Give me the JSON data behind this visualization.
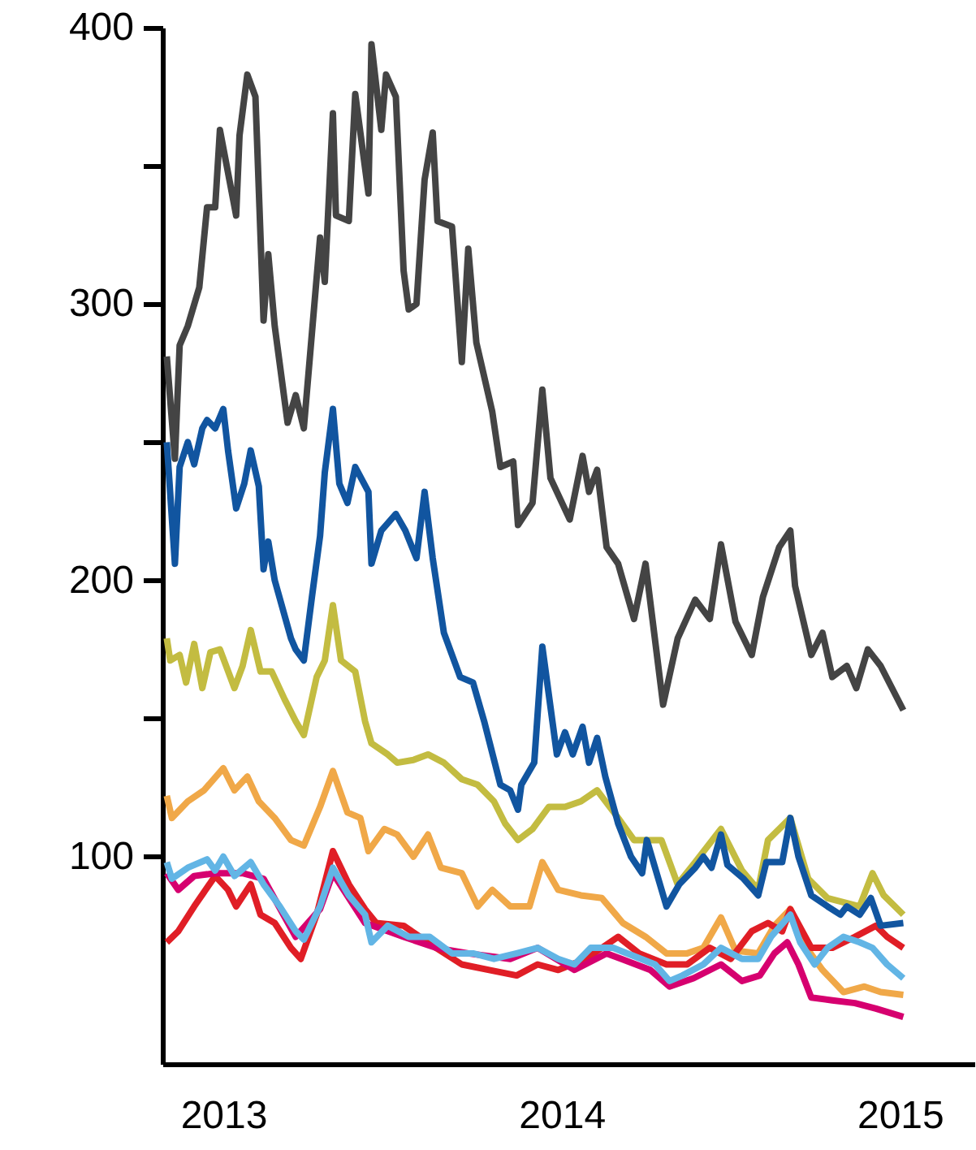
{
  "chart_data": {
    "type": "line",
    "xlim": [
      2012.82,
      2015.22
    ],
    "xticks": [
      2013,
      2014,
      2015
    ],
    "ylim": [
      25,
      400
    ],
    "yticks": [
      100,
      {
        "value": 150,
        "label": null
      },
      200,
      {
        "value": 250,
        "label": null
      },
      300,
      {
        "value": 350,
        "label": null
      },
      400
    ],
    "line_style": "solid",
    "series": [
      {
        "color": "#444444",
        "x": [
          2012.833,
          2012.857,
          2012.871,
          2012.895,
          2012.929,
          2012.952,
          2012.976,
          2012.99,
          2013.038,
          2013.048,
          2013.071,
          2013.095,
          2013.119,
          2013.133,
          2013.152,
          2013.19,
          2013.214,
          2013.238,
          2013.286,
          2013.3,
          2013.324,
          2013.333,
          2013.371,
          2013.39,
          2013.429,
          2013.438,
          2013.467,
          2013.481,
          2013.51,
          2013.533,
          2013.548,
          2013.571,
          2013.595,
          2013.619,
          2013.633,
          2013.676,
          2013.705,
          2013.724,
          2013.748,
          2013.795,
          2013.819,
          2013.857,
          2013.871,
          2013.914,
          2013.943,
          2013.967,
          2014.024,
          2014.062,
          2014.081,
          2014.105,
          2014.133,
          2014.167,
          2014.214,
          2014.248,
          2014.3,
          2014.343,
          2014.395,
          2014.438,
          2014.471,
          2014.514,
          2014.562,
          2014.595,
          2014.643,
          2014.676,
          2014.69,
          2014.738,
          2014.771,
          2014.8,
          2014.843,
          2014.871,
          2014.905,
          2014.943,
          2015.01
        ],
        "values": [
          281,
          244,
          285,
          292,
          306,
          335,
          335,
          363,
          332,
          361,
          383,
          375,
          294,
          318,
          292,
          257,
          267,
          255,
          324,
          308,
          369,
          332,
          330,
          376,
          340,
          394,
          363,
          383,
          375,
          312,
          298,
          300,
          345,
          362,
          330,
          328,
          279,
          320,
          286,
          261,
          241,
          243,
          220,
          228,
          269,
          237,
          222,
          245,
          232,
          240,
          212,
          206,
          186,
          206,
          155,
          179,
          193,
          186,
          213,
          185,
          173,
          194,
          212,
          218,
          198,
          173,
          181,
          165,
          169,
          161,
          175,
          169,
          153
        ]
      },
      {
        "color": "#c3bc41",
        "x": [
          2012.833,
          2012.843,
          2012.871,
          2012.89,
          2012.914,
          2012.938,
          2012.962,
          2012.99,
          2013.033,
          2013.057,
          2013.081,
          2013.11,
          2013.143,
          2013.181,
          2013.214,
          2013.238,
          2013.276,
          2013.3,
          2013.324,
          2013.348,
          2013.39,
          2013.419,
          2013.438,
          2013.486,
          2013.514,
          2013.562,
          2013.605,
          2013.652,
          2013.705,
          2013.752,
          2013.8,
          2013.833,
          2013.871,
          2013.914,
          2013.962,
          2014.01,
          2014.057,
          2014.105,
          2014.167,
          2014.214,
          2014.295,
          2014.343,
          2014.395,
          2014.471,
          2014.533,
          2014.581,
          2014.61,
          2014.676,
          2014.729,
          2014.786,
          2014.881,
          2014.919,
          2014.952,
          2015.01
        ],
        "values": [
          179,
          171,
          173,
          163,
          177,
          161,
          174,
          175,
          161,
          169,
          182,
          167,
          167,
          157,
          149,
          144,
          165,
          171,
          191,
          171,
          167,
          149,
          141,
          137,
          134,
          135,
          137,
          134,
          128,
          126,
          120,
          112,
          106,
          110,
          118,
          118,
          120,
          124,
          114,
          106,
          106,
          90,
          98,
          110,
          95,
          88,
          106,
          114,
          92,
          85,
          82,
          94,
          86,
          79
        ]
      },
      {
        "color": "#f0a848",
        "x": [
          2012.833,
          2012.848,
          2012.895,
          2012.943,
          2013.0,
          2013.033,
          2013.071,
          2013.105,
          2013.152,
          2013.2,
          2013.238,
          2013.286,
          2013.324,
          2013.367,
          2013.405,
          2013.429,
          2013.476,
          2013.514,
          2013.562,
          2013.605,
          2013.643,
          2013.705,
          2013.752,
          2013.795,
          2013.848,
          2013.905,
          2013.943,
          2013.99,
          2014.057,
          2014.119,
          2014.181,
          2014.248,
          2014.31,
          2014.371,
          2014.419,
          2014.471,
          2014.514,
          2014.581,
          2014.629,
          2014.676,
          2014.724,
          2014.771,
          2014.833,
          2014.895,
          2014.943,
          2015.01
        ],
        "values": [
          122,
          114,
          120,
          124,
          132,
          124,
          129,
          120,
          114,
          106,
          104,
          118,
          131,
          116,
          114,
          102,
          110,
          108,
          100,
          108,
          96,
          94,
          82,
          88,
          82,
          82,
          98,
          88,
          86,
          85,
          76,
          71,
          65,
          65,
          67,
          78,
          66,
          65,
          75,
          81,
          67,
          59,
          51,
          53,
          51,
          50
        ]
      },
      {
        "color": "#e01e26",
        "x": [
          2012.833,
          2012.867,
          2012.914,
          2012.976,
          2013.014,
          2013.038,
          2013.081,
          2013.11,
          2013.152,
          2013.2,
          2013.229,
          2013.276,
          2013.324,
          2013.371,
          2013.419,
          2013.452,
          2013.533,
          2013.629,
          2013.705,
          2013.786,
          2013.867,
          2013.929,
          2013.99,
          2014.071,
          2014.167,
          2014.229,
          2014.31,
          2014.371,
          2014.438,
          2014.5,
          2014.562,
          2014.61,
          2014.652,
          2014.676,
          2014.738,
          2014.8,
          2014.867,
          2014.929,
          2014.962,
          2015.01
        ],
        "values": [
          69,
          73,
          82,
          93,
          88,
          82,
          90,
          79,
          76,
          67,
          63,
          79,
          102,
          90,
          81,
          76,
          75,
          67,
          61,
          59,
          57,
          61,
          59,
          63,
          71,
          65,
          61,
          61,
          67,
          63,
          73,
          76,
          73,
          81,
          67,
          67,
          71,
          75,
          71,
          67
        ]
      },
      {
        "color": "#d6006f",
        "x": [
          2012.833,
          2012.867,
          2012.914,
          2012.976,
          2013.057,
          2013.119,
          2013.214,
          2013.286,
          2013.324,
          2013.419,
          2013.533,
          2013.629,
          2013.724,
          2013.848,
          2013.929,
          2014.038,
          2014.133,
          2014.262,
          2014.319,
          2014.39,
          2014.471,
          2014.533,
          2014.586,
          2014.629,
          2014.667,
          2014.7,
          2014.738,
          2014.8,
          2014.867,
          2014.929,
          2015.01
        ],
        "values": [
          94,
          88,
          93,
          94,
          94,
          92,
          71,
          81,
          94,
          76,
          71,
          67,
          65,
          63,
          67,
          59,
          65,
          59,
          53,
          56,
          61,
          55,
          57,
          65,
          69,
          61,
          49,
          48,
          47,
          45,
          42
        ]
      },
      {
        "color": "#62b5e5",
        "x": [
          2012.833,
          2012.848,
          2012.895,
          2012.952,
          2012.976,
          2013.0,
          2013.033,
          2013.081,
          2013.119,
          2013.167,
          2013.214,
          2013.238,
          2013.286,
          2013.324,
          2013.371,
          2013.419,
          2013.438,
          2013.486,
          2013.548,
          2013.61,
          2013.676,
          2013.738,
          2013.8,
          2013.867,
          2013.929,
          2013.99,
          2014.038,
          2014.086,
          2014.152,
          2014.214,
          2014.276,
          2014.319,
          2014.357,
          2014.419,
          2014.471,
          2014.533,
          2014.581,
          2014.619,
          2014.676,
          2014.705,
          2014.748,
          2014.786,
          2014.833,
          2014.881,
          2014.919,
          2014.962,
          2015.01
        ],
        "values": [
          98,
          92,
          96,
          99,
          95,
          100,
          93,
          98,
          90,
          82,
          73,
          70,
          82,
          96,
          86,
          79,
          69,
          75,
          71,
          71,
          65,
          65,
          63,
          65,
          67,
          63,
          61,
          67,
          67,
          64,
          61,
          55,
          57,
          61,
          67,
          63,
          63,
          71,
          79,
          69,
          61,
          67,
          71,
          69,
          67,
          61,
          56
        ]
      },
      {
        "color": "#1155a0",
        "x": [
          2012.833,
          2012.857,
          2012.871,
          2012.895,
          2012.914,
          2012.938,
          2012.952,
          2012.976,
          2013.0,
          2013.014,
          2013.038,
          2013.062,
          2013.081,
          2013.105,
          2013.119,
          2013.133,
          2013.152,
          2013.2,
          2013.214,
          2013.238,
          2013.262,
          2013.286,
          2013.3,
          2013.324,
          2013.343,
          2013.367,
          2013.39,
          2013.429,
          2013.438,
          2013.467,
          2013.51,
          2013.538,
          2013.571,
          2013.595,
          2013.619,
          2013.652,
          2013.7,
          2013.738,
          2013.771,
          2013.819,
          2013.848,
          2013.871,
          2013.881,
          2013.919,
          2013.943,
          2013.986,
          2014.01,
          2014.033,
          2014.062,
          2014.081,
          2014.105,
          2014.129,
          2014.167,
          2014.205,
          2014.238,
          2014.252,
          2014.31,
          2014.348,
          2014.395,
          2014.419,
          2014.443,
          2014.471,
          2014.49,
          2014.538,
          2014.581,
          2014.605,
          2014.652,
          2014.676,
          2014.7,
          2014.738,
          2014.786,
          2014.824,
          2014.843,
          2014.881,
          2014.914,
          2014.943,
          2015.01
        ],
        "values": [
          250,
          206,
          241,
          250,
          242,
          255,
          258,
          255,
          262,
          247,
          226,
          235,
          247,
          234,
          204,
          214,
          200,
          179,
          175,
          171,
          194,
          216,
          239,
          262,
          235,
          228,
          241,
          232,
          206,
          218,
          224,
          218,
          208,
          232,
          208,
          181,
          165,
          163,
          149,
          126,
          124,
          117,
          126,
          134,
          176,
          137,
          145,
          137,
          147,
          134,
          143,
          129,
          112,
          100,
          94,
          106,
          82,
          90,
          96,
          100,
          96,
          108,
          97,
          92,
          86,
          98,
          98,
          114,
          100,
          86,
          82,
          79,
          82,
          79,
          85,
          75,
          76
        ]
      }
    ]
  }
}
